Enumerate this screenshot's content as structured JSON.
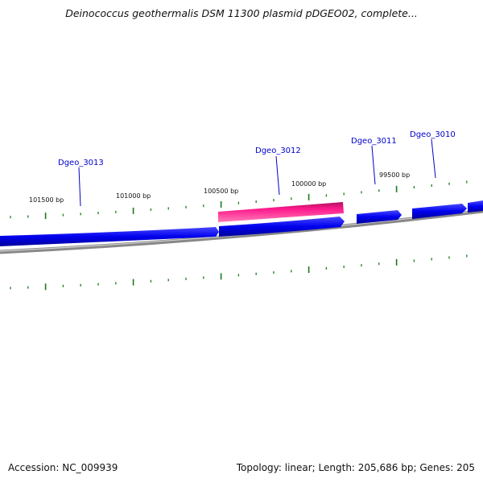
{
  "title": "Deinococcus geothermalis DSM 11300 plasmid pDGEO02, complete...",
  "footer": {
    "accession": "Accession: NC_009939",
    "summary": "Topology: linear; Length: 205,686 bp; Genes: 205"
  },
  "ruler": {
    "labels": [
      "101500 bp",
      "101000 bp",
      "100500 bp",
      "100000 bp",
      "99500 bp"
    ]
  },
  "genes": [
    {
      "name": "Dgeo_3013",
      "color": "#0000cc"
    },
    {
      "name": "Dgeo_3012",
      "color": "#0000cc"
    },
    {
      "name": "Dgeo_3011",
      "color": "#0000cc"
    },
    {
      "name": "Dgeo_3010",
      "color": "#0000cc"
    }
  ],
  "colors": {
    "gene_blue": "#0000ee",
    "gene_highlight": "#ff1a8c",
    "tick": "#1a7a1a",
    "backbone": "#888888"
  }
}
